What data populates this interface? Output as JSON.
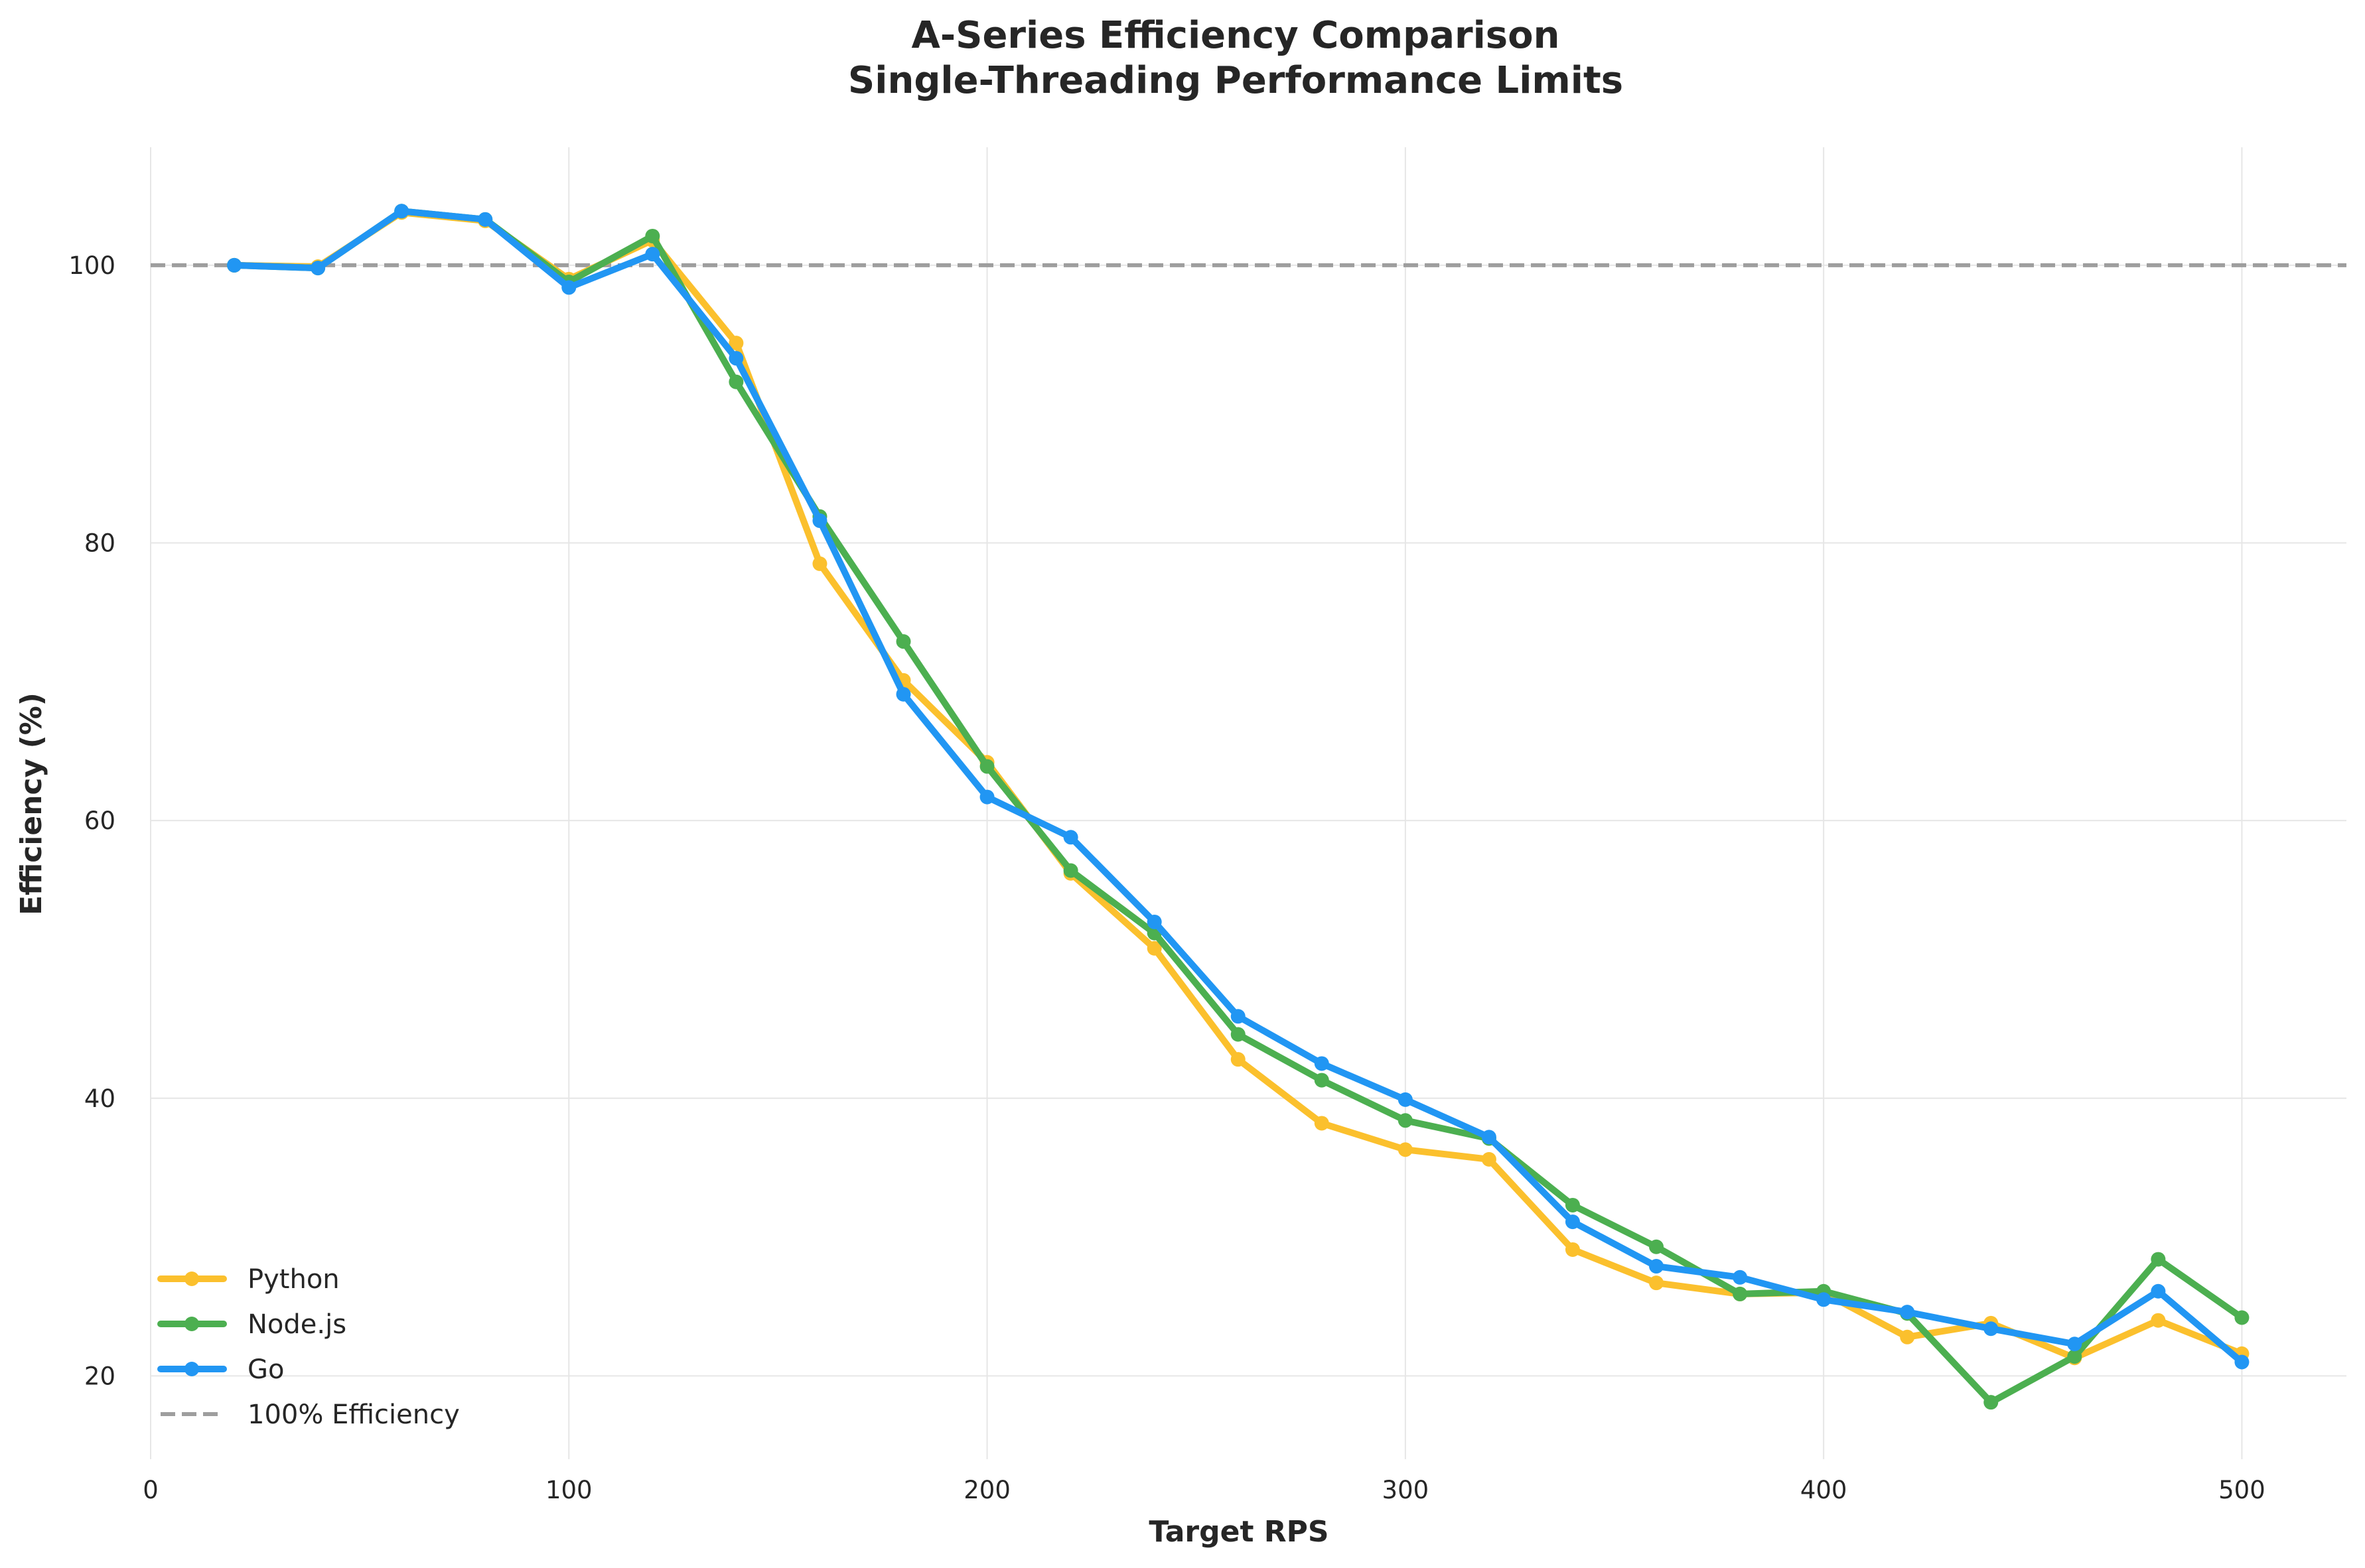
{
  "chart_data": {
    "type": "line",
    "title_line1": "A-Series Efficiency Comparison",
    "title_line2": "Single-Threading Performance Limits",
    "xlabel": "Target RPS",
    "ylabel": "Efficiency (%)",
    "xlim": [
      0,
      525
    ],
    "ylim": [
      14,
      108.5
    ],
    "xticks": [
      0,
      100,
      200,
      300,
      400,
      500
    ],
    "yticks": [
      20,
      40,
      60,
      80,
      100
    ],
    "grid": true,
    "legend_position": "bottom-left",
    "x": [
      20,
      40,
      60,
      80,
      100,
      120,
      140,
      160,
      180,
      200,
      220,
      240,
      260,
      280,
      300,
      320,
      340,
      360,
      380,
      400,
      420,
      440,
      460,
      480,
      500
    ],
    "series": [
      {
        "name": "Python",
        "color": "#FBC02D",
        "values": [
          100.0,
          99.9,
          103.8,
          103.2,
          99.0,
          101.8,
          94.4,
          78.5,
          70.1,
          64.2,
          56.2,
          50.8,
          42.8,
          38.2,
          36.3,
          35.6,
          29.1,
          26.7,
          25.9,
          26.0,
          22.8,
          23.8,
          21.3,
          24.0,
          21.6
        ]
      },
      {
        "name": "Node.js",
        "color": "#4CAF50",
        "values": [
          100.0,
          99.8,
          103.9,
          103.3,
          98.8,
          102.1,
          91.6,
          81.9,
          72.9,
          63.9,
          56.4,
          51.9,
          44.6,
          41.3,
          38.4,
          37.1,
          32.3,
          29.3,
          25.9,
          26.1,
          24.5,
          18.1,
          21.4,
          28.4,
          24.2
        ]
      },
      {
        "name": "Go",
        "color": "#2196F3",
        "values": [
          100.0,
          99.8,
          103.9,
          103.3,
          98.4,
          100.8,
          93.3,
          81.6,
          69.1,
          61.7,
          58.8,
          52.7,
          45.9,
          42.5,
          39.9,
          37.2,
          31.1,
          27.9,
          27.1,
          25.5,
          24.6,
          23.4,
          22.3,
          26.1,
          21.0
        ]
      }
    ],
    "reference_line": {
      "name": "100% Efficiency",
      "y": 100,
      "color": "#9E9E9E",
      "style": "dashed"
    },
    "grid_color": "#E6E6E6",
    "text_color": "#262626"
  }
}
